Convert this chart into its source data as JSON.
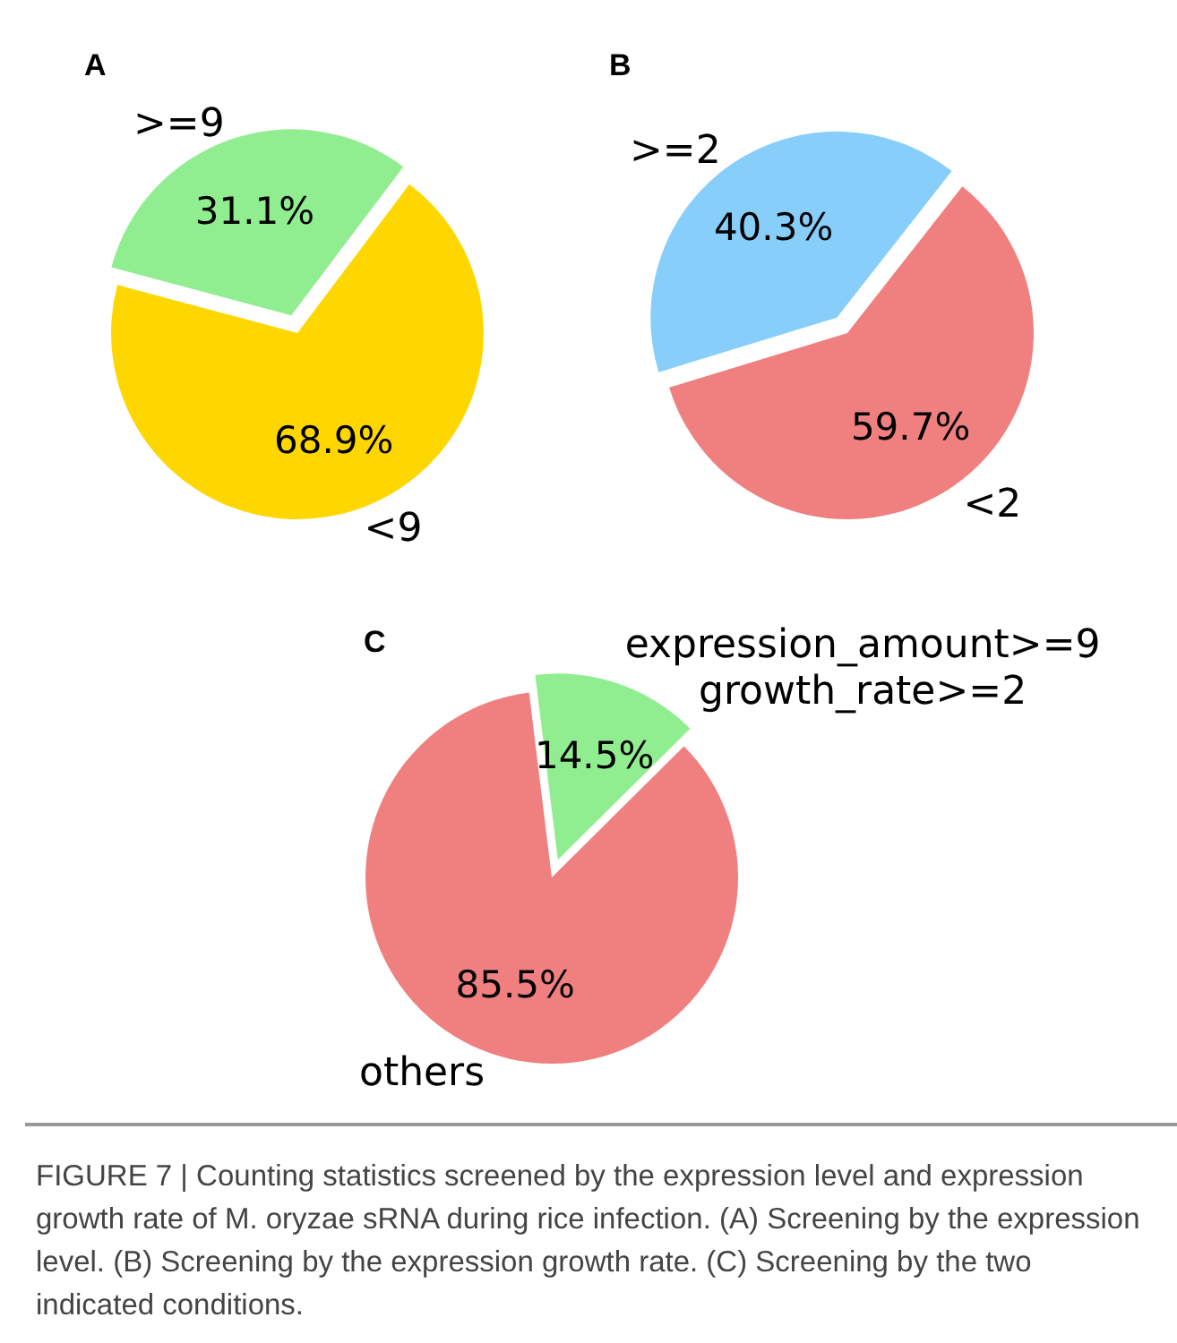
{
  "chart_data": [
    {
      "type": "pie",
      "title": "A",
      "categories": [
        ">=9",
        "<9"
      ],
      "values": [
        31.1,
        68.9
      ],
      "colors": [
        "#90ee90",
        "#ffd700"
      ],
      "value_labels": [
        "31.1%",
        "68.9%"
      ]
    },
    {
      "type": "pie",
      "title": "B",
      "categories": [
        ">=2",
        "<2"
      ],
      "values": [
        40.3,
        59.7
      ],
      "colors": [
        "#87cefa",
        "#f08080"
      ],
      "value_labels": [
        "40.3%",
        "59.7%"
      ]
    },
    {
      "type": "pie",
      "title": "C",
      "categories": [
        "expression_amount>=9\ngrowth_rate>=2",
        "others"
      ],
      "values": [
        14.5,
        85.5
      ],
      "colors": [
        "#90ee90",
        "#f08080"
      ],
      "value_labels": [
        "14.5%",
        "85.5%"
      ],
      "annotations": [
        "FIGURE 7 | Counting statistics screened by the expression level and expression growth rate of M. oryzae sRNA during rice infection. (A) Screening by the expression level. (B) Screening by the expression growth rate. (C) Screening by the two indicated conditions."
      ]
    }
  ]
}
